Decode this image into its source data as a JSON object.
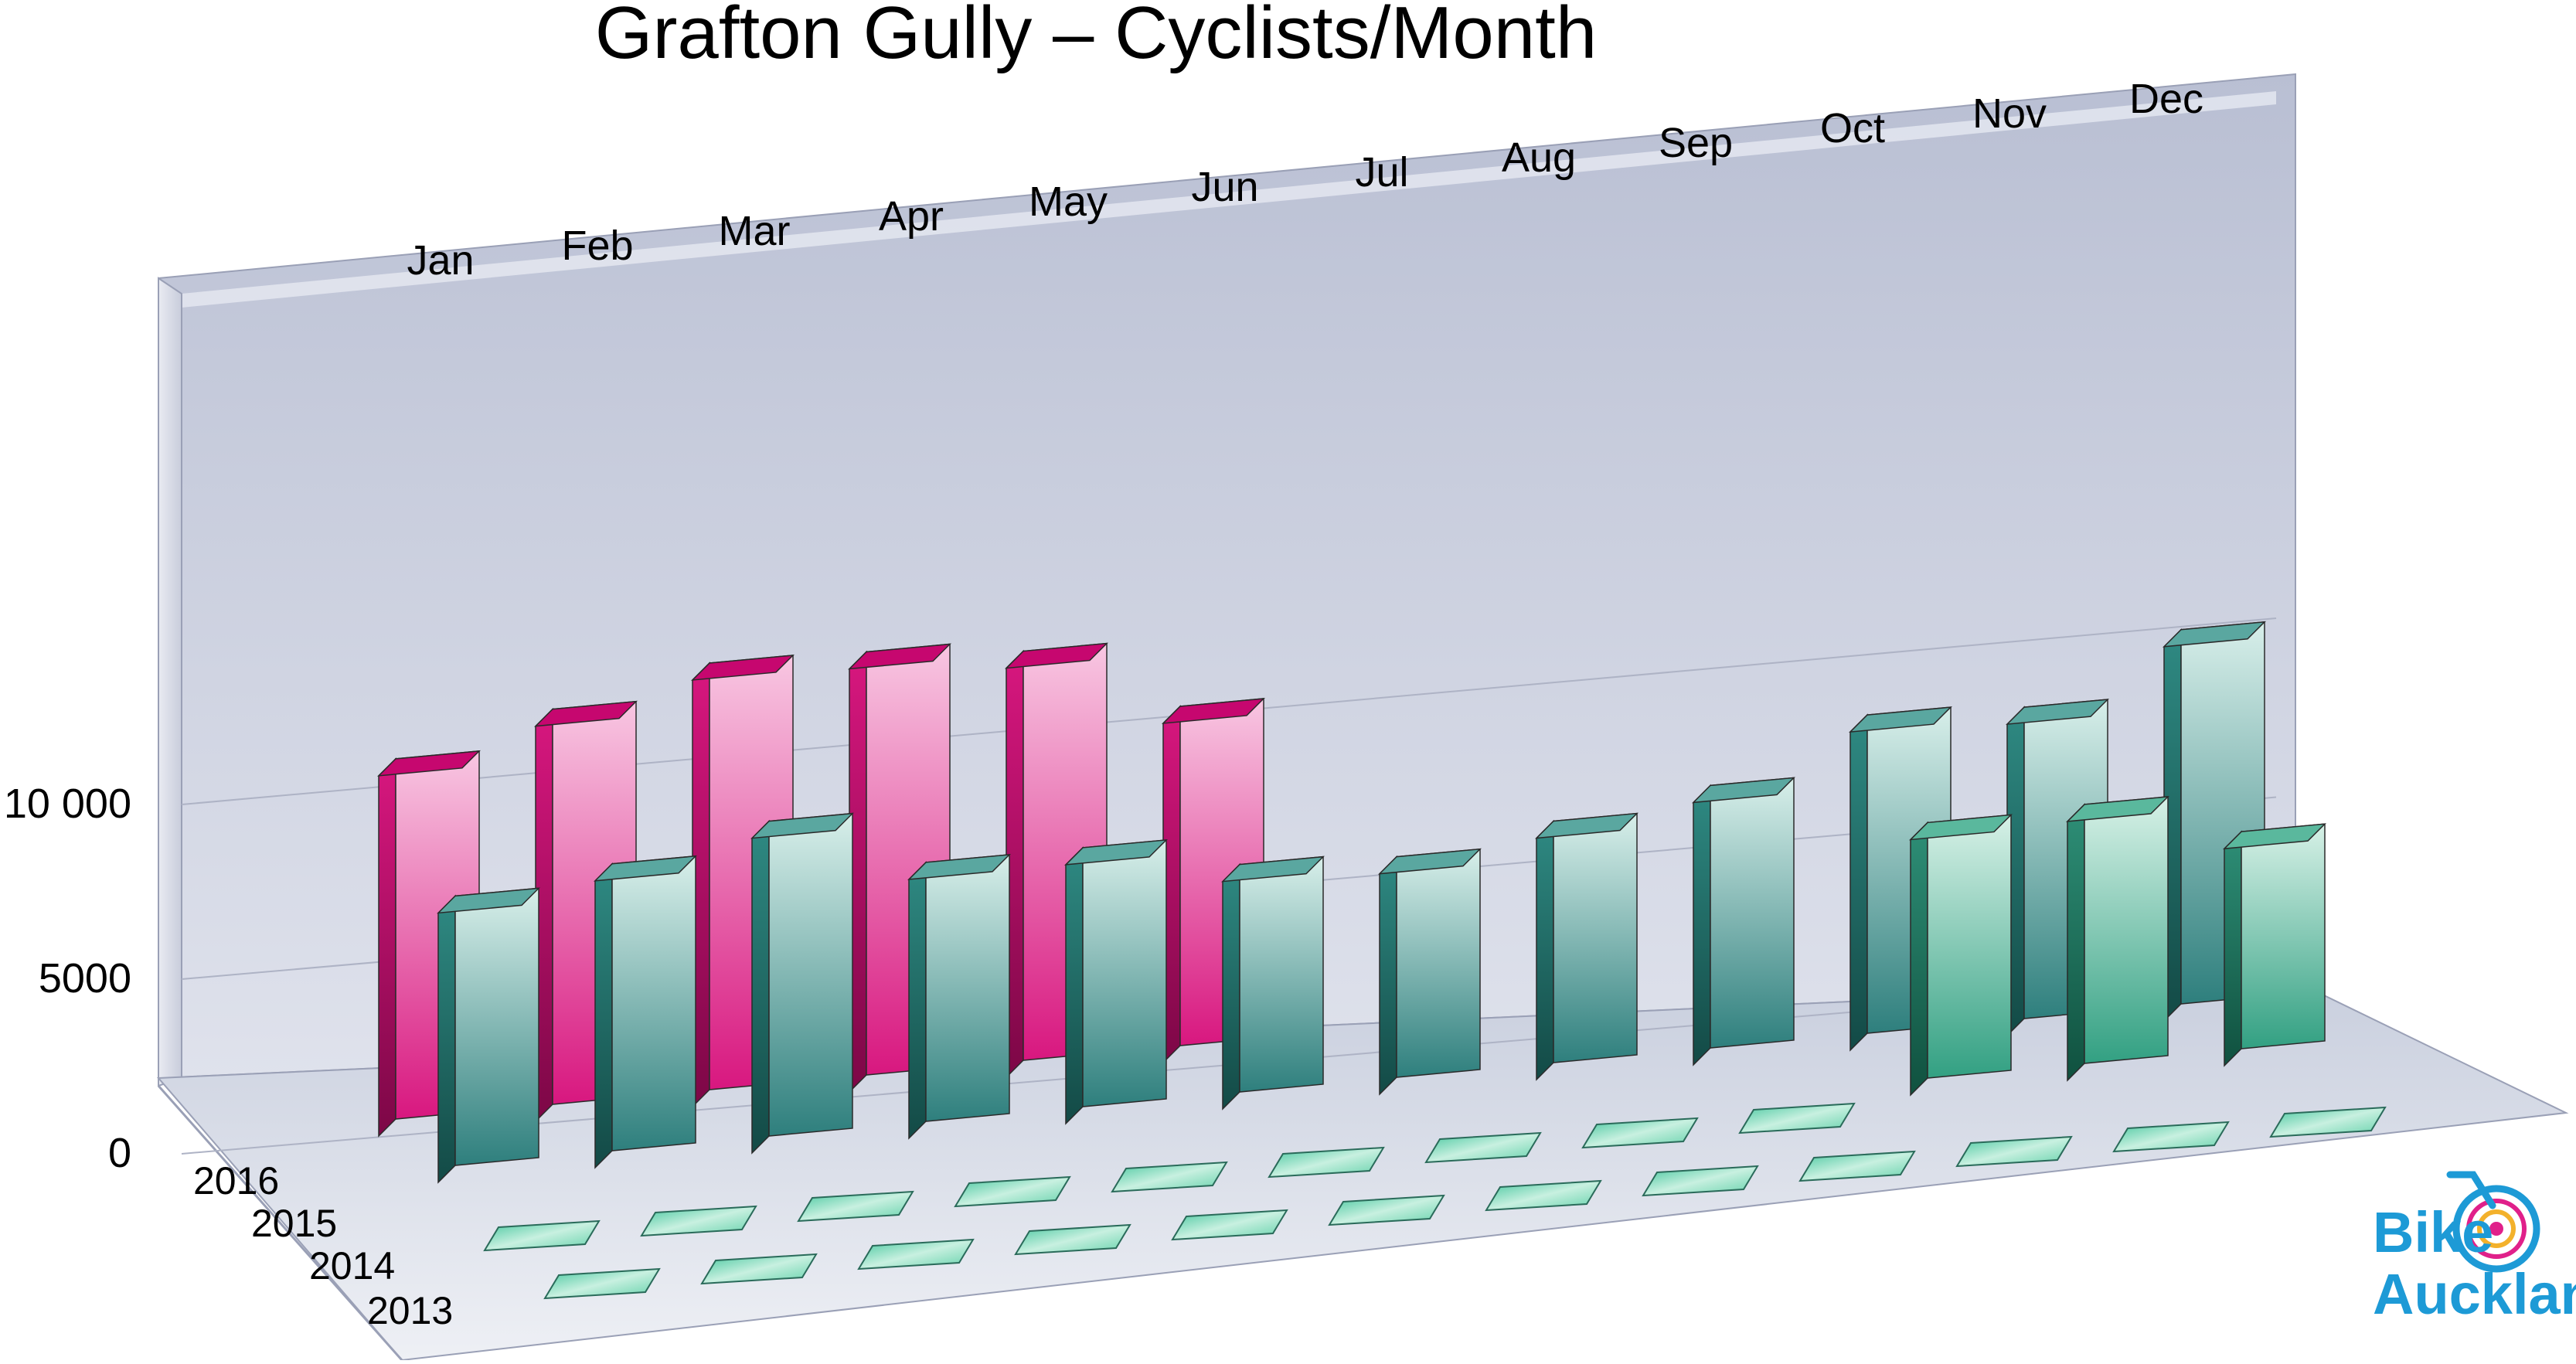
{
  "chart_data": {
    "type": "bar",
    "title": "Grafton Gully – Cyclists/Month",
    "categories": [
      "Jan",
      "Feb",
      "Mar",
      "Apr",
      "May",
      "Jun",
      "Jul",
      "Aug",
      "Sep",
      "Oct",
      "Nov",
      "Dec"
    ],
    "y_ticks": [
      "0",
      "5000",
      "10 000"
    ],
    "ylim": [
      0,
      12000
    ],
    "depth_categories": [
      "2016",
      "2015",
      "2014",
      "2013"
    ],
    "series": [
      {
        "name": "2016",
        "color": "#d6157f",
        "values": [
          10800,
          11800,
          12700,
          12600,
          12200,
          10200,
          null,
          null,
          null,
          null,
          null,
          null
        ]
      },
      {
        "name": "2015",
        "color": "#2f8a83",
        "values": [
          8200,
          8700,
          9500,
          7900,
          7900,
          7000,
          6800,
          7400,
          8000,
          9600,
          9400,
          11200
        ]
      },
      {
        "name": "2014",
        "color": "#2e9a83",
        "values": [
          0,
          0,
          0,
          0,
          0,
          0,
          0,
          0,
          0,
          7800,
          7900,
          6700
        ]
      },
      {
        "name": "2013",
        "color": "#4fbf98",
        "values": [
          0,
          0,
          0,
          0,
          0,
          0,
          0,
          0,
          0,
          0,
          0,
          0
        ]
      }
    ],
    "grid": true
  },
  "logo": {
    "line1": "Bike",
    "line2": "Auckland"
  }
}
